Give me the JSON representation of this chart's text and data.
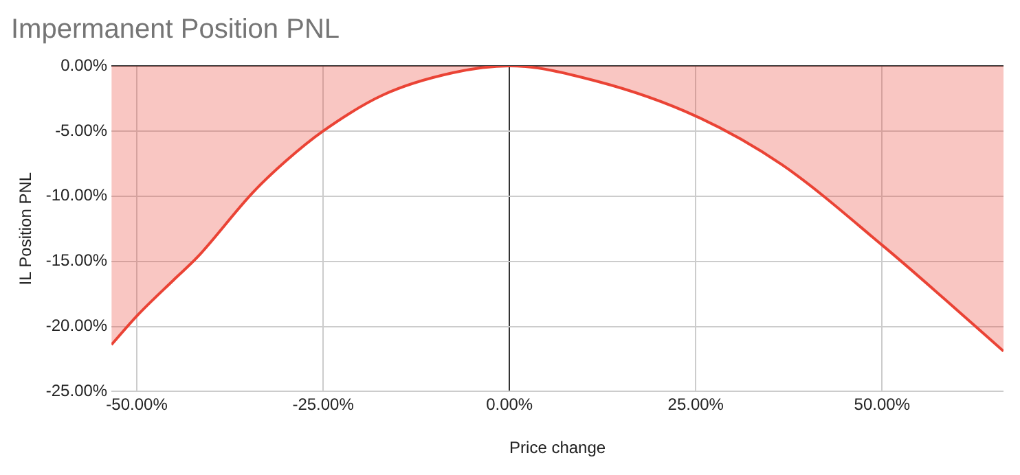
{
  "chart_data": {
    "type": "area",
    "title": "Impermanent Position PNL",
    "xlabel": "Price change",
    "ylabel": "IL Position PNL",
    "x": [
      -53.4,
      -50,
      -45,
      -41.9,
      -34.4,
      -30,
      -25,
      -17,
      -7.6,
      0,
      11.7,
      25,
      36.6,
      50.1,
      58.4,
      66.3
    ],
    "series": [
      {
        "color": "#ea4335",
        "values": [
          -21.4,
          -19.2,
          -16.4,
          -14.7,
          -9.7,
          -7.3,
          -5,
          -2.24,
          -0.53,
          0,
          -1.17,
          -3.85,
          -7.6,
          -13.8,
          -17.9,
          -21.9
        ]
      }
    ],
    "xlim": [
      -53.4,
      66.3
    ],
    "xticks": [
      {
        "value": -50,
        "label": "-50.00%"
      },
      {
        "value": -25,
        "label": "-25.00%"
      },
      {
        "value": 0,
        "label": "0.00%"
      },
      {
        "value": 25,
        "label": "25.00%"
      },
      {
        "value": 50,
        "label": "50.00%"
      }
    ],
    "ylim": [
      -25,
      0
    ],
    "yticks": [
      {
        "value": -25,
        "label": "-25.00%"
      },
      {
        "value": -20,
        "label": "-20.00%"
      },
      {
        "value": -15,
        "label": "-15.00%"
      },
      {
        "value": -10,
        "label": "-10.00%"
      },
      {
        "value": -5,
        "label": "-5.00%"
      },
      {
        "value": 0,
        "label": "0.00%"
      }
    ],
    "grid": true,
    "legend": false,
    "marker": "none",
    "line_style": "solid"
  }
}
